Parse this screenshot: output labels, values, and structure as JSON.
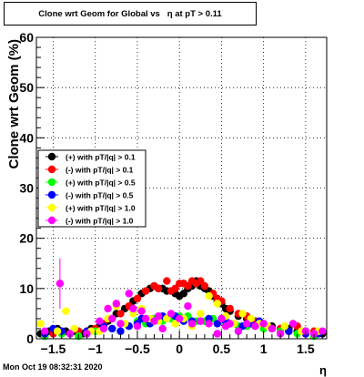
{
  "title": "Clone wrt Geom for Global vs   η at pT > 0.11",
  "timestamp": "Mon Oct 19 08:32:31 2020",
  "chart_data": {
    "type": "scatter",
    "xlabel": "η",
    "ylabel": "Clone wrt Geom (%)",
    "xlim": [
      -1.7,
      1.75
    ],
    "ylim": [
      0,
      60
    ],
    "x_ticks": [
      -1.5,
      -1,
      -0.5,
      0,
      0.5,
      1,
      1.5
    ],
    "x_tick_labels": [
      "−1.5",
      "−1",
      "−0.5",
      "0",
      "0.5",
      "1",
      "1.5"
    ],
    "y_ticks": [
      0,
      10,
      20,
      30,
      40,
      50,
      60
    ],
    "y_tick_labels": [
      "0",
      "10",
      "20",
      "30",
      "40",
      "50",
      "60"
    ],
    "grid": true,
    "legend_placement": "center-left",
    "series": [
      {
        "name": "(+) with pT/|q| > 0.1",
        "color": "#000000",
        "x": [
          -1.65,
          -1.55,
          -1.45,
          -1.35,
          -1.25,
          -1.15,
          -1.05,
          -0.95,
          -0.85,
          -0.75,
          -0.65,
          -0.55,
          -0.45,
          -0.35,
          -0.3,
          -0.25,
          -0.2,
          -0.15,
          -0.1,
          -0.05,
          0.0,
          0.05,
          0.1,
          0.15,
          0.2,
          0.25,
          0.3,
          0.35,
          0.4,
          0.45,
          0.5,
          0.55,
          0.6,
          0.7,
          0.8,
          0.9,
          1.0,
          1.1,
          1.2,
          1.3,
          1.4,
          1.5,
          1.6,
          1.7
        ],
        "y": [
          1.0,
          1.5,
          2.0,
          1.5,
          1.5,
          1.0,
          2.0,
          2.5,
          3.5,
          5.0,
          6.0,
          7.5,
          9.0,
          10.0,
          10.5,
          10.0,
          10.0,
          9.5,
          9.5,
          9.0,
          8.5,
          9.0,
          10.0,
          10.5,
          11.5,
          10.5,
          10.0,
          9.5,
          8.5,
          7.5,
          7.0,
          6.0,
          5.5,
          4.5,
          4.0,
          3.5,
          3.0,
          2.5,
          2.0,
          2.0,
          1.5,
          1.5,
          1.0,
          1.0
        ]
      },
      {
        "name": "(-) with pT/|q| > 0.1",
        "color": "#ff0000",
        "x": [
          -1.6,
          -1.5,
          -1.4,
          -1.3,
          -1.2,
          -1.1,
          -1.0,
          -0.9,
          -0.8,
          -0.7,
          -0.6,
          -0.5,
          -0.4,
          -0.3,
          -0.25,
          -0.15,
          -0.1,
          -0.05,
          0.0,
          0.05,
          0.1,
          0.15,
          0.2,
          0.25,
          0.3,
          0.4,
          0.45,
          0.5,
          0.6,
          0.7,
          0.8,
          0.9,
          1.0,
          1.1,
          1.2,
          1.3,
          1.4,
          1.5,
          1.6
        ],
        "y": [
          0.5,
          1.0,
          1.5,
          1.0,
          1.5,
          1.5,
          2.0,
          3.0,
          4.0,
          5.0,
          6.5,
          8.0,
          9.5,
          10.5,
          10.0,
          11.5,
          9.5,
          10.0,
          11.0,
          11.0,
          10.5,
          11.5,
          11.0,
          11.5,
          10.5,
          9.0,
          8.0,
          7.5,
          6.0,
          5.0,
          4.5,
          3.5,
          2.5,
          2.0,
          2.0,
          1.5,
          2.5,
          1.0,
          1.5
        ]
      },
      {
        "name": "(+) with pT/|q| > 0.5",
        "color": "#00ff00",
        "x": [
          -1.6,
          -1.4,
          -1.2,
          -1.0,
          -0.8,
          -0.6,
          -0.5,
          -0.4,
          -0.3,
          -0.2,
          -0.1,
          0.0,
          0.1,
          0.2,
          0.3,
          0.4,
          0.5,
          0.6,
          0.7,
          0.8,
          0.9,
          1.0,
          1.2,
          1.4,
          1.6
        ],
        "y": [
          0.5,
          1.0,
          0.5,
          1.5,
          2.0,
          2.5,
          3.5,
          3.0,
          4.0,
          3.5,
          4.0,
          4.5,
          4.5,
          3.5,
          3.5,
          4.0,
          3.5,
          3.0,
          2.5,
          2.5,
          2.5,
          2.0,
          1.5,
          1.0,
          0.5
        ]
      },
      {
        "name": "(-) with pT/|q| > 0.5",
        "color": "#0000ff",
        "x": [
          -1.6,
          -1.5,
          -1.4,
          -1.3,
          -1.1,
          -0.9,
          -0.8,
          -0.7,
          -0.6,
          -0.5,
          -0.45,
          -0.35,
          -0.2,
          -0.15,
          -0.05,
          0.05,
          0.15,
          0.25,
          0.35,
          0.45,
          0.55,
          0.65,
          0.75,
          0.85,
          0.95,
          1.1,
          1.3,
          1.5,
          1.65
        ],
        "y": [
          1.0,
          2.0,
          1.5,
          1.0,
          1.5,
          2.5,
          2.0,
          1.5,
          2.5,
          3.0,
          4.0,
          3.0,
          4.5,
          4.0,
          4.5,
          3.5,
          3.5,
          3.5,
          4.0,
          3.0,
          3.5,
          3.0,
          2.5,
          3.0,
          3.5,
          2.0,
          1.5,
          1.0,
          1.0
        ]
      },
      {
        "name": "(+) with pT/|q| > 1.0",
        "color": "#ffff00",
        "x": [
          -1.65,
          -1.45,
          -1.35,
          -1.25,
          -1.05,
          -0.95,
          -0.85,
          -0.75,
          -0.65,
          -0.55,
          -0.45,
          -0.35,
          -0.25,
          -0.15,
          -0.05,
          0.05,
          0.15,
          0.25,
          0.35,
          0.45,
          0.55,
          0.65,
          0.75,
          0.85,
          0.95,
          1.05,
          1.25,
          1.45,
          1.65
        ],
        "y": [
          3.0,
          1.5,
          5.5,
          2.0,
          1.5,
          1.5,
          4.0,
          6.5,
          3.0,
          5.0,
          6.0,
          4.0,
          3.5,
          4.0,
          3.0,
          4.0,
          2.5,
          5.0,
          8.5,
          7.0,
          4.5,
          3.0,
          5.0,
          4.0,
          3.0,
          2.5,
          2.5,
          1.5,
          1.5
        ]
      },
      {
        "name": "(-) with pT/|q| > 1.0",
        "color": "#ff00ff",
        "x": [
          -1.6,
          -1.42,
          -1.3,
          -1.1,
          -0.95,
          -0.9,
          -0.85,
          -0.8,
          -0.75,
          -0.7,
          -0.6,
          -0.55,
          -0.5,
          -0.45,
          -0.4,
          -0.3,
          -0.25,
          -0.2,
          -0.1,
          0.0,
          0.1,
          0.15,
          0.25,
          0.35,
          0.45,
          0.5,
          0.55,
          0.6,
          0.7,
          0.8,
          0.9,
          1.0,
          1.1,
          1.2,
          1.35,
          1.5,
          1.6,
          1.7
        ],
        "y": [
          1.5,
          11.0,
          1.0,
          1.0,
          3.5,
          2.0,
          6.0,
          4.0,
          7.0,
          3.0,
          9.0,
          6.0,
          2.5,
          5.5,
          4.0,
          3.5,
          4.5,
          2.0,
          5.0,
          4.0,
          6.5,
          3.0,
          3.5,
          3.0,
          1.0,
          4.0,
          2.5,
          3.0,
          1.5,
          3.0,
          2.5,
          3.0,
          2.0,
          1.0,
          3.0,
          1.5,
          1.0,
          1.5
        ]
      }
    ]
  }
}
